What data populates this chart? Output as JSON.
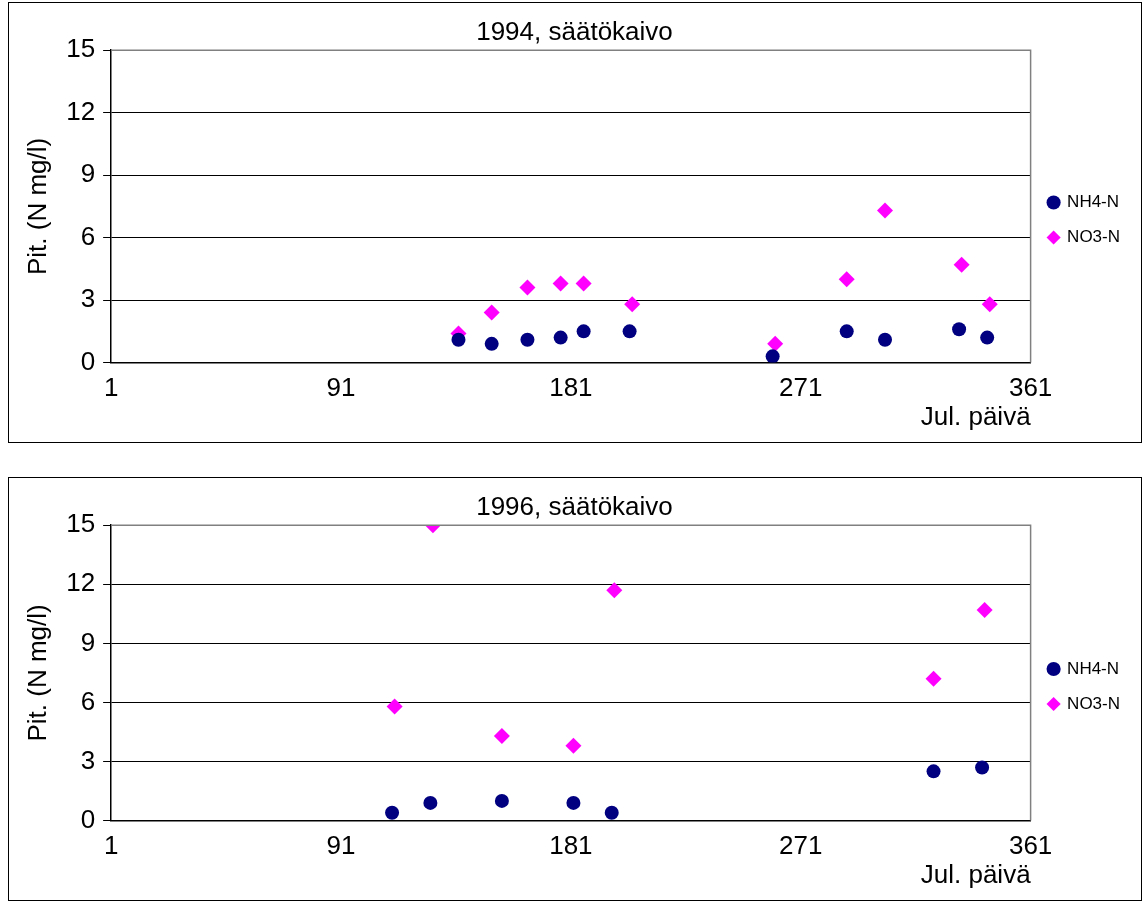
{
  "chart_data": [
    {
      "type": "scatter",
      "title": "1994, säätökaivo",
      "xlabel": "Jul. päivä",
      "ylabel": "Pit. (N mg/l)",
      "xlim": [
        1,
        361
      ],
      "xticks": [
        1,
        91,
        181,
        271,
        361
      ],
      "ylim": [
        0,
        15
      ],
      "yticks": [
        0,
        3,
        6,
        9,
        12,
        15
      ],
      "grid": "y",
      "legend": "right",
      "series": [
        {
          "name": "NH4-N",
          "color": "#000080",
          "marker": "circle",
          "x": [
            137,
            150,
            164,
            177,
            186,
            204,
            260,
            289,
            304,
            333,
            344
          ],
          "values": [
            1.1,
            0.9,
            1.1,
            1.2,
            1.5,
            1.5,
            0.3,
            1.5,
            1.1,
            1.6,
            1.2
          ]
        },
        {
          "name": "NO3-N",
          "color": "#ff00ff",
          "marker": "diamond",
          "x": [
            137,
            150,
            164,
            177,
            186,
            205,
            261,
            289,
            304,
            334,
            345
          ],
          "values": [
            1.4,
            2.4,
            3.6,
            3.8,
            3.8,
            2.8,
            0.9,
            4.0,
            7.3,
            4.7,
            2.8
          ]
        }
      ]
    },
    {
      "type": "scatter",
      "title": "1996, säätökaivo",
      "xlabel": "Jul. päivä",
      "ylabel": "Pit. (N mg/l)",
      "xlim": [
        1,
        361
      ],
      "xticks": [
        1,
        91,
        181,
        271,
        361
      ],
      "ylim": [
        0,
        15
      ],
      "yticks": [
        0,
        3,
        6,
        9,
        12,
        15
      ],
      "grid": "y",
      "legend": "right",
      "series": [
        {
          "name": "NH4-N",
          "color": "#000080",
          "marker": "circle",
          "x": [
            111,
            126,
            154,
            182,
            197,
            323,
            342
          ],
          "values": [
            0.4,
            0.9,
            1.0,
            0.9,
            0.4,
            2.5,
            2.7
          ]
        },
        {
          "name": "NO3-N",
          "color": "#ff00ff",
          "marker": "diamond",
          "x": [
            112,
            127,
            154,
            182,
            198,
            323,
            343
          ],
          "values": [
            5.8,
            15.0,
            4.3,
            3.8,
            11.7,
            7.2,
            10.7
          ]
        }
      ]
    }
  ]
}
